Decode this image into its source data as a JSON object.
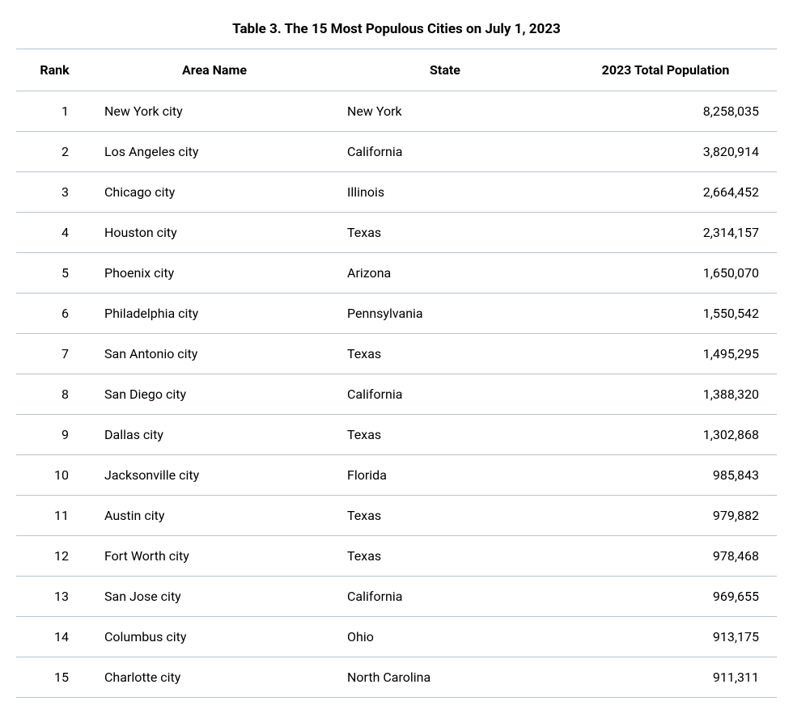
{
  "table": {
    "title": "Table 3. The 15 Most Populous Cities on July 1, 2023",
    "columns": [
      "Rank",
      "Area Name",
      "State",
      "2023 Total Population"
    ],
    "column_alignments": [
      "right",
      "left",
      "left",
      "right"
    ],
    "header_alignment": "center",
    "border_color": "#b8c4cc",
    "background_color": "#ffffff",
    "text_color": "#000000",
    "title_fontsize": 17,
    "title_weight": "bold",
    "header_fontsize": 16,
    "header_weight": "bold",
    "cell_fontsize": 16,
    "rows": [
      {
        "rank": "1",
        "area": "New York city",
        "state": "New York",
        "population": "8,258,035"
      },
      {
        "rank": "2",
        "area": "Los Angeles city",
        "state": "California",
        "population": "3,820,914"
      },
      {
        "rank": "3",
        "area": "Chicago city",
        "state": "Illinois",
        "population": "2,664,452"
      },
      {
        "rank": "4",
        "area": "Houston city",
        "state": "Texas",
        "population": "2,314,157"
      },
      {
        "rank": "5",
        "area": "Phoenix city",
        "state": "Arizona",
        "population": "1,650,070"
      },
      {
        "rank": "6",
        "area": "Philadelphia city",
        "state": "Pennsylvania",
        "population": "1,550,542"
      },
      {
        "rank": "7",
        "area": "San Antonio city",
        "state": "Texas",
        "population": "1,495,295"
      },
      {
        "rank": "8",
        "area": "San Diego city",
        "state": "California",
        "population": "1,388,320"
      },
      {
        "rank": "9",
        "area": "Dallas city",
        "state": "Texas",
        "population": "1,302,868"
      },
      {
        "rank": "10",
        "area": "Jacksonville city",
        "state": "Florida",
        "population": "985,843"
      },
      {
        "rank": "11",
        "area": "Austin city",
        "state": "Texas",
        "population": "979,882"
      },
      {
        "rank": "12",
        "area": "Fort Worth city",
        "state": "Texas",
        "population": "978,468"
      },
      {
        "rank": "13",
        "area": "San Jose city",
        "state": "California",
        "population": "969,655"
      },
      {
        "rank": "14",
        "area": "Columbus city",
        "state": "Ohio",
        "population": "913,175"
      },
      {
        "rank": "15",
        "area": "Charlotte city",
        "state": "North Carolina",
        "population": "911,311"
      }
    ]
  }
}
